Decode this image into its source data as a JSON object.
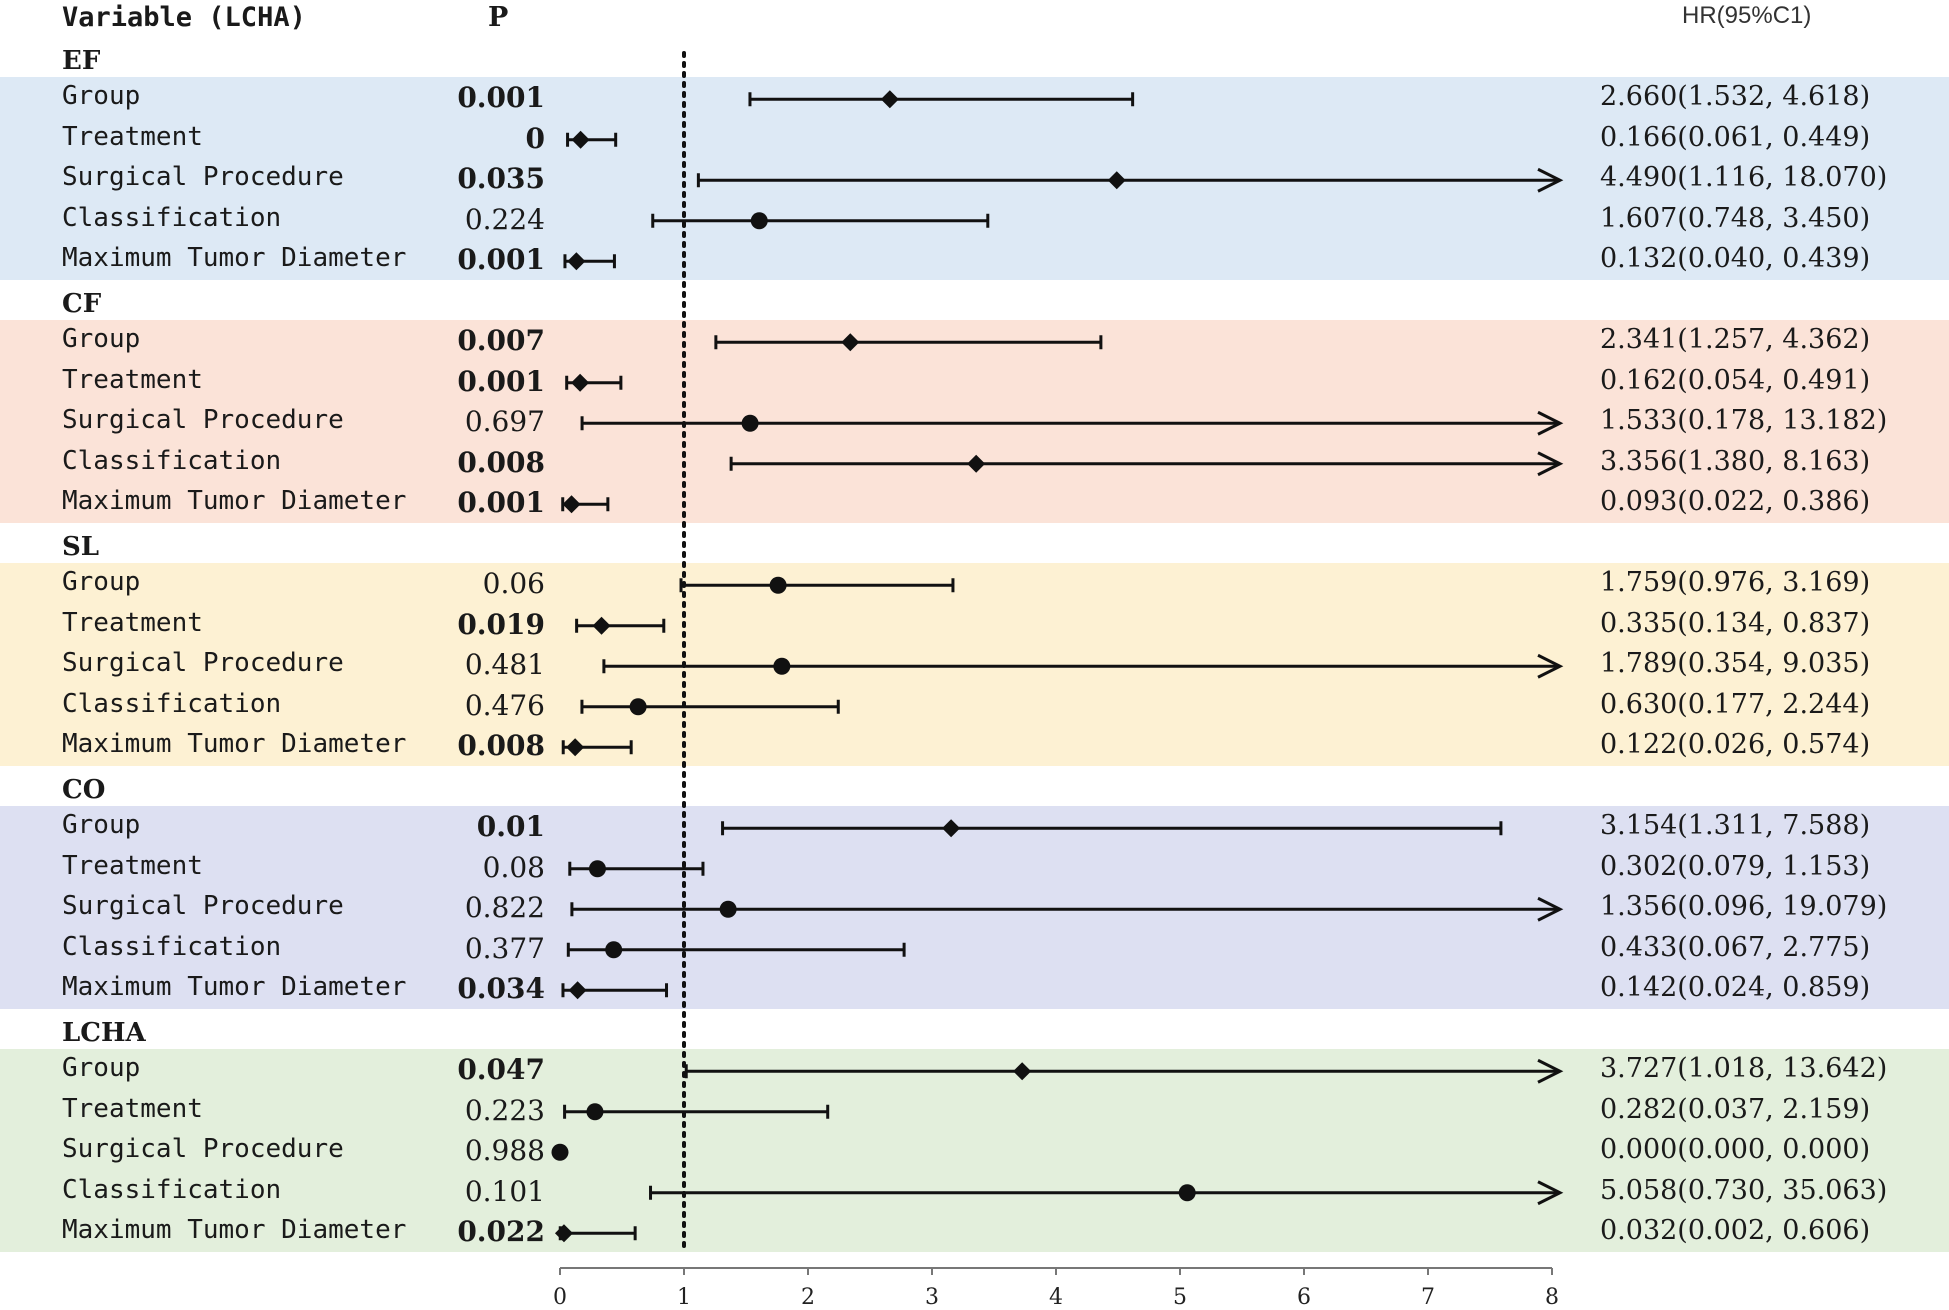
{
  "headers": {
    "variable": "Variable (LCHA)",
    "p": "P",
    "hr": "HR(95%C1)"
  },
  "colors": {
    "EF": "#dde9f5",
    "CF": "#fbe3d8",
    "SL": "#fdf1d3",
    "CO": "#dde0f2",
    "LCHA": "#e3efdc",
    "ink": "#111111"
  },
  "chart_data": {
    "type": "forest",
    "xlim": [
      0,
      8
    ],
    "ticks": [
      "0",
      "1",
      "2",
      "3",
      "4",
      "5",
      "6",
      "7",
      "8"
    ],
    "reference_line": 1,
    "groups": [
      {
        "name": "EF",
        "rows": [
          {
            "label": "Group",
            "p": "0.001",
            "sig": true,
            "hr": 2.66,
            "lo": 1.532,
            "hi": 4.618,
            "marker": "diamond",
            "text": "2.660(1.532, 4.618)"
          },
          {
            "label": "Treatment",
            "p": "0",
            "sig": true,
            "hr": 0.166,
            "lo": 0.061,
            "hi": 0.449,
            "marker": "diamond",
            "text": "0.166(0.061, 0.449)"
          },
          {
            "label": "Surgical Procedure",
            "p": "0.035",
            "sig": true,
            "hr": 4.49,
            "lo": 1.116,
            "hi": 18.07,
            "marker": "diamond",
            "text": "4.490(1.116, 18.070)"
          },
          {
            "label": "Classification",
            "p": "0.224",
            "sig": false,
            "hr": 1.607,
            "lo": 0.748,
            "hi": 3.45,
            "marker": "circle",
            "text": "1.607(0.748, 3.450)"
          },
          {
            "label": "Maximum Tumor Diameter",
            "p": "0.001",
            "sig": true,
            "hr": 0.132,
            "lo": 0.04,
            "hi": 0.439,
            "marker": "diamond",
            "text": "0.132(0.040, 0.439)"
          }
        ]
      },
      {
        "name": "CF",
        "rows": [
          {
            "label": "Group",
            "p": "0.007",
            "sig": true,
            "hr": 2.341,
            "lo": 1.257,
            "hi": 4.362,
            "marker": "diamond",
            "text": "2.341(1.257, 4.362)"
          },
          {
            "label": "Treatment",
            "p": "0.001",
            "sig": true,
            "hr": 0.162,
            "lo": 0.054,
            "hi": 0.491,
            "marker": "diamond",
            "text": "0.162(0.054, 0.491)"
          },
          {
            "label": "Surgical Procedure",
            "p": "0.697",
            "sig": false,
            "hr": 1.533,
            "lo": 0.178,
            "hi": 13.182,
            "marker": "circle",
            "text": "1.533(0.178, 13.182)"
          },
          {
            "label": "Classification",
            "p": "0.008",
            "sig": true,
            "hr": 3.356,
            "lo": 1.38,
            "hi": 8.163,
            "marker": "diamond",
            "text": "3.356(1.380, 8.163)"
          },
          {
            "label": "Maximum Tumor Diameter",
            "p": "0.001",
            "sig": true,
            "hr": 0.093,
            "lo": 0.022,
            "hi": 0.386,
            "marker": "diamond",
            "text": "0.093(0.022, 0.386)"
          }
        ]
      },
      {
        "name": "SL",
        "rows": [
          {
            "label": "Group",
            "p": "0.06",
            "sig": false,
            "hr": 1.759,
            "lo": 0.976,
            "hi": 3.169,
            "marker": "circle",
            "text": "1.759(0.976, 3.169)"
          },
          {
            "label": "Treatment",
            "p": "0.019",
            "sig": true,
            "hr": 0.335,
            "lo": 0.134,
            "hi": 0.837,
            "marker": "diamond",
            "text": "0.335(0.134, 0.837)"
          },
          {
            "label": "Surgical Procedure",
            "p": "0.481",
            "sig": false,
            "hr": 1.789,
            "lo": 0.354,
            "hi": 9.035,
            "marker": "circle",
            "text": "1.789(0.354, 9.035)"
          },
          {
            "label": "Classification",
            "p": "0.476",
            "sig": false,
            "hr": 0.63,
            "lo": 0.177,
            "hi": 2.244,
            "marker": "circle",
            "text": "0.630(0.177, 2.244)"
          },
          {
            "label": "Maximum Tumor Diameter",
            "p": "0.008",
            "sig": true,
            "hr": 0.122,
            "lo": 0.026,
            "hi": 0.574,
            "marker": "diamond",
            "text": "0.122(0.026, 0.574)"
          }
        ]
      },
      {
        "name": "CO",
        "rows": [
          {
            "label": "Group",
            "p": "0.01",
            "sig": true,
            "hr": 3.154,
            "lo": 1.311,
            "hi": 7.588,
            "marker": "diamond",
            "text": "3.154(1.311, 7.588)"
          },
          {
            "label": "Treatment",
            "p": "0.08",
            "sig": false,
            "hr": 0.302,
            "lo": 0.079,
            "hi": 1.153,
            "marker": "circle",
            "text": "0.302(0.079, 1.153)"
          },
          {
            "label": "Surgical Procedure",
            "p": "0.822",
            "sig": false,
            "hr": 1.356,
            "lo": 0.096,
            "hi": 19.079,
            "marker": "circle",
            "text": "1.356(0.096, 19.079)"
          },
          {
            "label": "Classification",
            "p": "0.377",
            "sig": false,
            "hr": 0.433,
            "lo": 0.067,
            "hi": 2.775,
            "marker": "circle",
            "text": "0.433(0.067, 2.775)"
          },
          {
            "label": "Maximum Tumor Diameter",
            "p": "0.034",
            "sig": true,
            "hr": 0.142,
            "lo": 0.024,
            "hi": 0.859,
            "marker": "diamond",
            "text": "0.142(0.024, 0.859)"
          }
        ]
      },
      {
        "name": "LCHA",
        "rows": [
          {
            "label": "Group",
            "p": "0.047",
            "sig": true,
            "hr": 3.727,
            "lo": 1.018,
            "hi": 13.642,
            "marker": "diamond",
            "text": "3.727(1.018, 13.642)"
          },
          {
            "label": "Treatment",
            "p": "0.223",
            "sig": false,
            "hr": 0.282,
            "lo": 0.037,
            "hi": 2.159,
            "marker": "circle",
            "text": "0.282(0.037, 2.159)"
          },
          {
            "label": "Surgical Procedure",
            "p": "0.988",
            "sig": false,
            "hr": 0.0,
            "lo": 0.0,
            "hi": 0.0,
            "marker": "circle",
            "text": "0.000(0.000, 0.000)"
          },
          {
            "label": "Classification",
            "p": "0.101",
            "sig": false,
            "hr": 5.058,
            "lo": 0.73,
            "hi": 35.063,
            "marker": "circle",
            "text": "5.058(0.730, 35.063)"
          },
          {
            "label": "Maximum Tumor Diameter",
            "p": "0.022",
            "sig": true,
            "hr": 0.032,
            "lo": 0.002,
            "hi": 0.606,
            "marker": "diamond",
            "text": "0.032(0.002, 0.606)"
          }
        ]
      }
    ]
  }
}
